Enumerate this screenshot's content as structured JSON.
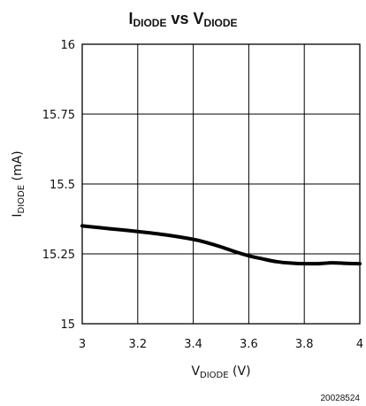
{
  "chart_data": {
    "type": "line",
    "title": {
      "main": "I",
      "main_sub": "DIODE",
      "middle": " vs ",
      "second": "V",
      "second_sub": "DIODE"
    },
    "xlabel": {
      "main": "V",
      "sub": "DIODE",
      "unit": " (V)"
    },
    "ylabel": {
      "main": "I",
      "sub": "DIODE",
      "unit": " (mA)"
    },
    "xlim": [
      3,
      4
    ],
    "ylim": [
      15,
      16
    ],
    "x_ticks": [
      3,
      3.2,
      3.4,
      3.6,
      3.8,
      4
    ],
    "x_tick_labels": [
      "3",
      "3.2",
      "3.4",
      "3.6",
      "3.8",
      "4"
    ],
    "y_ticks": [
      15,
      15.25,
      15.5,
      15.75,
      16
    ],
    "y_tick_labels": [
      "15",
      "15.25",
      "15.5",
      "15.75",
      "16"
    ],
    "grid": true,
    "series": [
      {
        "x": [
          3.0,
          3.1,
          3.2,
          3.3,
          3.4,
          3.45,
          3.5,
          3.55,
          3.6,
          3.65,
          3.7,
          3.75,
          3.8,
          3.85,
          3.9,
          3.95,
          4.0
        ],
        "y": [
          15.35,
          15.34,
          15.33,
          15.318,
          15.302,
          15.29,
          15.275,
          15.258,
          15.243,
          15.232,
          15.222,
          15.217,
          15.215,
          15.215,
          15.218,
          15.216,
          15.215
        ],
        "color": "#000000"
      }
    ],
    "figure_id": "20028524"
  }
}
